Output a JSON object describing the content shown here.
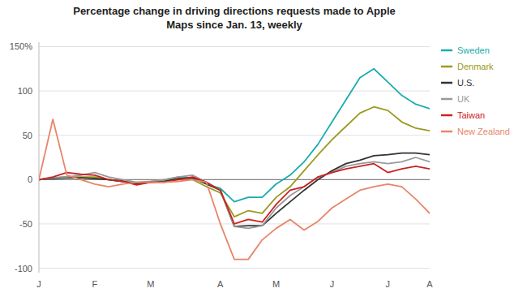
{
  "chart_data": {
    "type": "line",
    "title": "Percentage change in driving directions requests made to Apple\nMaps since Jan. 13, weekly",
    "x": [
      0,
      1,
      2,
      3,
      4,
      5,
      6,
      7,
      8,
      9,
      10,
      11,
      12,
      13,
      14,
      15,
      16,
      17,
      18,
      19,
      20,
      21,
      22,
      23,
      24,
      25,
      26,
      27,
      28
    ],
    "xlim": [
      0,
      28
    ],
    "xticks": [
      {
        "value": 0,
        "label": "J"
      },
      {
        "value": 4,
        "label": "F"
      },
      {
        "value": 8,
        "label": "M"
      },
      {
        "value": 13,
        "label": "A"
      },
      {
        "value": 17,
        "label": "M"
      },
      {
        "value": 21,
        "label": "J"
      },
      {
        "value": 25,
        "label": "J"
      },
      {
        "value": 28,
        "label": "A"
      }
    ],
    "ylim": [
      -105,
      155
    ],
    "yticks": [
      -100,
      -50,
      0,
      50,
      100,
      {
        "value": 150,
        "label": "150%"
      }
    ],
    "grid": true,
    "legend": "right",
    "series": [
      {
        "name": "Sweden",
        "color": "#1aacac",
        "values": [
          0,
          2,
          3,
          2,
          2,
          0,
          -2,
          -4,
          -3,
          0,
          3,
          2,
          -5,
          -10,
          -25,
          -20,
          -20,
          -5,
          5,
          20,
          40,
          65,
          90,
          115,
          125,
          110,
          95,
          85,
          80
        ]
      },
      {
        "name": "Denmark",
        "color": "#9a9a20",
        "values": [
          0,
          2,
          3,
          3,
          3,
          0,
          -2,
          -5,
          -3,
          -2,
          2,
          0,
          -8,
          -15,
          -42,
          -35,
          -38,
          -20,
          -8,
          10,
          28,
          45,
          60,
          75,
          82,
          78,
          65,
          58,
          55
        ]
      },
      {
        "name": "U.S.",
        "color": "#333333",
        "values": [
          0,
          1,
          2,
          2,
          1,
          0,
          -2,
          -5,
          -3,
          -2,
          1,
          2,
          -5,
          -12,
          -53,
          -52,
          -52,
          -38,
          -25,
          -12,
          0,
          10,
          18,
          22,
          27,
          28,
          30,
          30,
          28
        ]
      },
      {
        "name": "UK",
        "color": "#999999",
        "values": [
          0,
          2,
          3,
          5,
          8,
          3,
          0,
          -3,
          -2,
          0,
          3,
          5,
          -3,
          -12,
          -53,
          -55,
          -52,
          -32,
          -18,
          -8,
          3,
          8,
          15,
          18,
          20,
          18,
          20,
          25,
          20
        ]
      },
      {
        "name": "Taiwan",
        "color": "#cc2222",
        "values": [
          0,
          3,
          8,
          6,
          5,
          0,
          -2,
          -6,
          -3,
          -3,
          0,
          3,
          -3,
          -12,
          -50,
          -45,
          -48,
          -28,
          -12,
          -8,
          3,
          8,
          12,
          15,
          18,
          8,
          12,
          15,
          12
        ]
      },
      {
        "name": "New Zealand",
        "color": "#e8856a",
        "values": [
          0,
          68,
          5,
          0,
          -5,
          -8,
          -5,
          -3,
          -3,
          -3,
          -2,
          0,
          -3,
          -50,
          -90,
          -90,
          -68,
          -55,
          -45,
          -57,
          -47,
          -32,
          -22,
          -12,
          -8,
          -5,
          -8,
          -22,
          -38
        ]
      }
    ]
  }
}
